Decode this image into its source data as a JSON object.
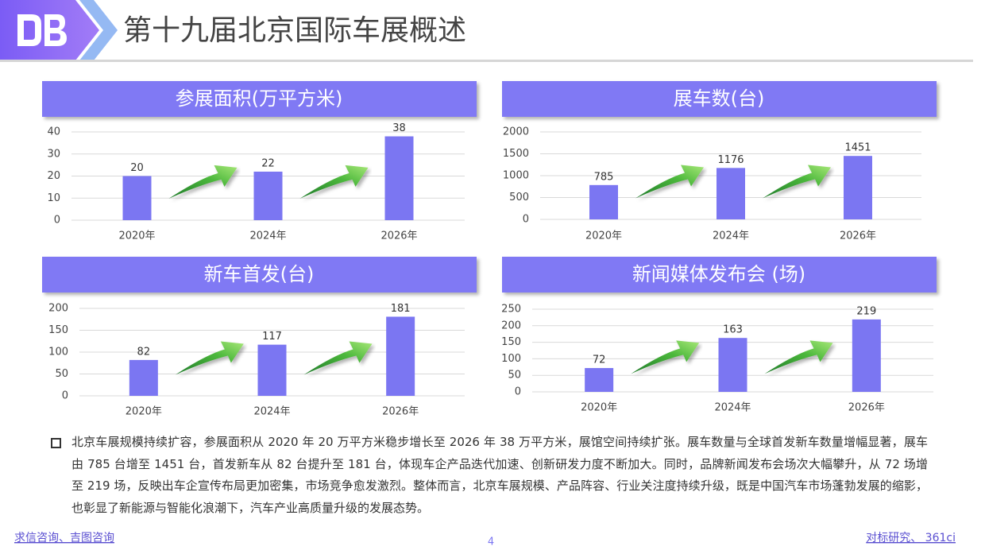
{
  "header": {
    "title": "第十九届北京国际车展概述"
  },
  "chart_data": [
    {
      "type": "bar",
      "title": "参展面积(万平方米)",
      "categories": [
        "2020年",
        "2024年",
        "2026年"
      ],
      "values": [
        20,
        22,
        38
      ],
      "color": "#7b76f2",
      "ylim": [
        0,
        40
      ],
      "yticks": [
        0,
        10,
        20,
        30,
        40
      ],
      "grid": true
    },
    {
      "type": "bar",
      "title": "展车数(台)",
      "categories": [
        "2020年",
        "2024年",
        "2026年"
      ],
      "values": [
        785,
        1176,
        1451
      ],
      "color": "#7b76f2",
      "ylim": [
        0,
        2000
      ],
      "yticks": [
        0,
        500,
        1000,
        1500,
        2000
      ],
      "grid": true
    },
    {
      "type": "bar",
      "title": "新车首发(台)",
      "categories": [
        "2020年",
        "2024年",
        "2026年"
      ],
      "values": [
        82,
        117,
        181
      ],
      "color": "#7b76f2",
      "ylim": [
        0,
        200
      ],
      "yticks": [
        0,
        50,
        100,
        150,
        200
      ],
      "grid": true
    },
    {
      "type": "bar",
      "title": "新闻媒体发布会 (场)",
      "categories": [
        "2020年",
        "2024年",
        "2026年"
      ],
      "values": [
        72,
        163,
        219
      ],
      "color": "#7b76f2",
      "ylim": [
        0,
        250
      ],
      "yticks": [
        0,
        50,
        100,
        150,
        200,
        250
      ],
      "grid": true
    }
  ],
  "summary": {
    "text": "北京车展规模持续扩容，参展面积从 2020 年 20 万平方米稳步增长至 2026 年 38 万平方米，展馆空间持续扩张。展车数量与全球首发新车数量增幅显著，展车由 785 台增至 1451 台，首发新车从 82 台提升至 181 台，体现车企产品迭代加速、创新研发力度不断加大。同时，品牌新闻发布会场次大幅攀升，从 72 场增至 219 场，反映出车企宣传布局更加密集，市场竞争愈发激烈。整体而言，北京车展规模、产品阵容、行业关注度持续升级，既是中国汽车市场蓬勃发展的缩影，也彰显了新能源与智能化浪潮下，汽车产业高质量升级的发展态势。"
  },
  "footer": {
    "left": "求信咨询、吉图咨询",
    "page": "4",
    "right": "对标研究、 361ci"
  }
}
